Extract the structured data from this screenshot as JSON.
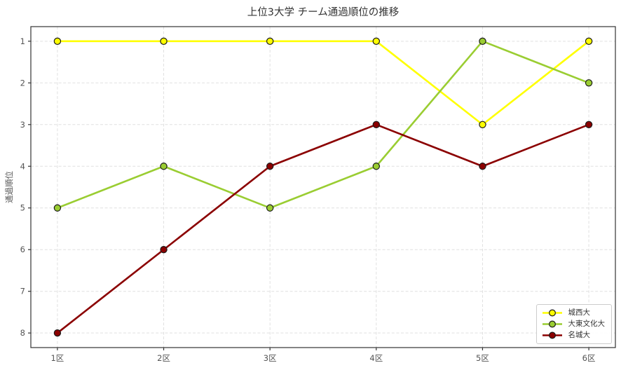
{
  "chart_data": {
    "type": "line",
    "title": "上位3大学 チーム通過順位の推移",
    "xlabel": "",
    "ylabel": "通過順位",
    "categories": [
      "1区",
      "2区",
      "3区",
      "4区",
      "5区",
      "6区"
    ],
    "x": [
      1,
      2,
      3,
      4,
      5,
      6
    ],
    "y_ticks": [
      1,
      2,
      3,
      4,
      5,
      6,
      7,
      8
    ],
    "y_axis_inverted": true,
    "xlim": [
      0.75,
      6.25
    ],
    "ylim": [
      0.65,
      8.35
    ],
    "grid": true,
    "legend_position": "lower right",
    "series": [
      {
        "name": "城西大",
        "color": "#ffff00",
        "values": [
          1,
          1,
          1,
          1,
          3,
          1
        ]
      },
      {
        "name": "大東文化大",
        "color": "#9acd32",
        "values": [
          5,
          4,
          5,
          4,
          1,
          2
        ]
      },
      {
        "name": "名城大",
        "color": "#8b0000",
        "values": [
          8,
          6,
          4,
          3,
          4,
          3
        ]
      }
    ],
    "colors": {
      "grid": "#e0e0e0",
      "axis": "#333333",
      "tick_label": "#555555",
      "marker_edge": "#1a1a1a",
      "background": "#ffffff",
      "legend_border": "#cccccc"
    }
  }
}
